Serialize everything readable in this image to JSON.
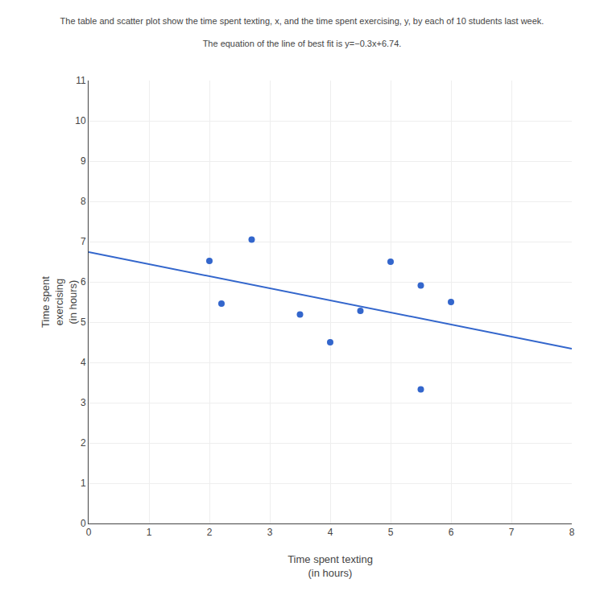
{
  "chart_data": {
    "type": "scatter",
    "title": "The table and scatter plot show the time spent texting, x, and the time spent exercising, y, by each of 10 students last week.",
    "subtitle": "The equation of the line of best fit is y=−0.3x+6.74.",
    "x_label": "Time spent texting\n(in hours)",
    "y_label": "Time spent\nexercising\n(in hours)",
    "series": [
      {
        "type": "scatter",
        "marker": "circle",
        "color": "#3366cc",
        "x": [
          2.0,
          2.2,
          2.7,
          3.5,
          4.0,
          4.5,
          5.0,
          5.5,
          5.5,
          6.0
        ],
        "values": [
          6.52,
          5.46,
          7.05,
          5.19,
          4.5,
          5.28,
          6.5,
          3.33,
          5.91,
          5.5
        ]
      },
      {
        "type": "line",
        "line_style": "solid",
        "color": "#3366cc",
        "x": [
          0,
          8
        ],
        "values": [
          6.74,
          4.34
        ]
      }
    ],
    "xlim": [
      0,
      8
    ],
    "xticks": [
      0,
      1,
      2,
      3,
      4,
      5,
      6,
      7,
      8
    ],
    "ylim": [
      0,
      11
    ],
    "yticks": [
      0,
      1,
      2,
      3,
      4,
      5,
      6,
      7,
      8,
      9,
      10,
      11
    ],
    "grid": true
  }
}
